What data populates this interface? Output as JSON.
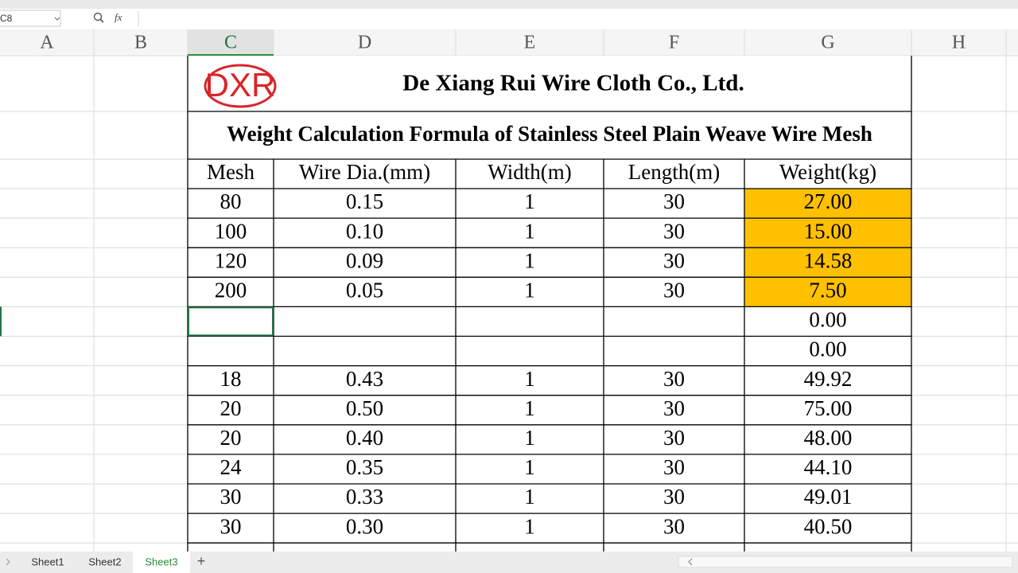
{
  "formula_bar": {
    "name_box": "C8",
    "fx": "fx"
  },
  "columns": [
    "A",
    "B",
    "C",
    "D",
    "E",
    "F",
    "G",
    "H"
  ],
  "selected_column": 2,
  "sheet": {
    "logo": "DXR",
    "company": "De Xiang Rui Wire Cloth Co., Ltd.",
    "title": "Weight Calculation Formula of Stainless Steel Plain Weave Wire Mesh",
    "header": [
      "Mesh",
      "Wire Dia.(mm)",
      "Width(m)",
      "Length(m)",
      "Weight(kg)"
    ],
    "rows": [
      [
        "80",
        "0.15",
        "1",
        "30",
        "27.00"
      ],
      [
        "100",
        "0.10",
        "1",
        "30",
        "15.00"
      ],
      [
        "120",
        "0.09",
        "1",
        "30",
        "14.58"
      ],
      [
        "200",
        "0.05",
        "1",
        "30",
        "7.50"
      ],
      [
        null,
        null,
        null,
        null,
        "0.00"
      ],
      [
        null,
        null,
        null,
        null,
        "0.00"
      ],
      [
        "18",
        "0.43",
        "1",
        "30",
        "49.92"
      ],
      [
        "20",
        "0.50",
        "1",
        "30",
        "75.00"
      ],
      [
        "20",
        "0.40",
        "1",
        "30",
        "48.00"
      ],
      [
        "24",
        "0.35",
        "1",
        "30",
        "44.10"
      ],
      [
        "30",
        "0.33",
        "1",
        "30",
        "49.01"
      ],
      [
        "30",
        "0.30",
        "1",
        "30",
        "40.50"
      ]
    ],
    "highlighted_rows": [
      0,
      1,
      2,
      3
    ],
    "highlight_color": "#ffc000",
    "selected_row": 4
  },
  "tabs": {
    "sheets": [
      "Sheet1",
      "Sheet2",
      "Sheet3"
    ],
    "active": 2,
    "add": "+"
  }
}
